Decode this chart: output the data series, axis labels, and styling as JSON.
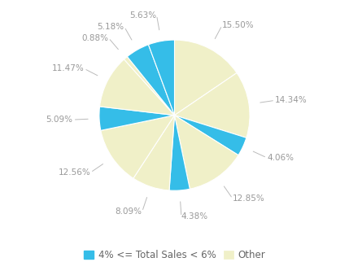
{
  "slices": [
    {
      "label": "15.50%",
      "value": 15.5,
      "color": "#f0f0c8",
      "is_blue": false
    },
    {
      "label": "14.34%",
      "value": 14.34,
      "color": "#f0f0c8",
      "is_blue": false
    },
    {
      "label": "4.06%",
      "value": 4.06,
      "color": "#35bde8",
      "is_blue": true
    },
    {
      "label": "12.85%",
      "value": 12.85,
      "color": "#f0f0c8",
      "is_blue": false
    },
    {
      "label": "4.38%",
      "value": 4.38,
      "color": "#35bde8",
      "is_blue": true
    },
    {
      "label": "8.09%",
      "value": 8.09,
      "color": "#f0f0c8",
      "is_blue": false
    },
    {
      "label": "12.56%",
      "value": 12.56,
      "color": "#f0f0c8",
      "is_blue": false
    },
    {
      "label": "5.09%",
      "value": 5.09,
      "color": "#35bde8",
      "is_blue": true
    },
    {
      "label": "11.47%",
      "value": 11.47,
      "color": "#f0f0c8",
      "is_blue": false
    },
    {
      "label": "0.88%",
      "value": 0.88,
      "color": "#f0f0c8",
      "is_blue": false
    },
    {
      "label": "5.18%",
      "value": 5.18,
      "color": "#35bde8",
      "is_blue": true
    },
    {
      "label": "5.63%",
      "value": 5.63,
      "color": "#35bde8",
      "is_blue": true
    }
  ],
  "legend_blue_label": "4% <= Total Sales < 6%",
  "legend_other_label": "Other",
  "blue_color": "#35bde8",
  "other_color": "#f0f0c8",
  "bg_color": "#ffffff",
  "label_color": "#999999",
  "line_color": "#bbbbbb",
  "label_fontsize": 7.5,
  "legend_fontsize": 8.5,
  "startangle": 90
}
